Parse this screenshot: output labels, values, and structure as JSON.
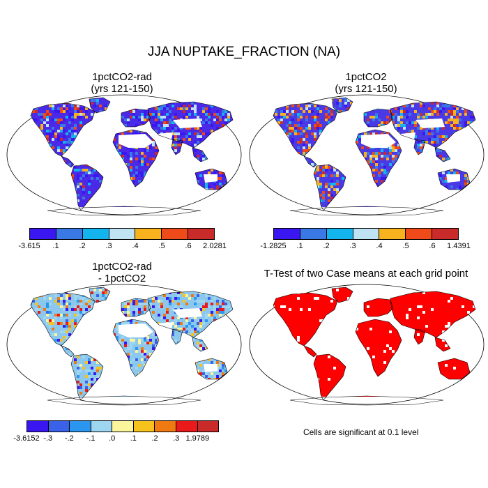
{
  "title": "JJA NUPTAKE_FRACTION (NA)",
  "panels": [
    {
      "title_line1": "1pctCO2-rad",
      "title_line2": "(yrs 121-150)"
    },
    {
      "title_line1": "1pctCO2",
      "title_line2": "(yrs 121-150)"
    },
    {
      "title_line1": "1pctCO2-rad",
      "title_line2": "- 1pctCO2"
    },
    {
      "title_line1": "T-Test of two Case means at each grid point",
      "title_line2": ""
    }
  ],
  "significance_note": "Cells are significant at 0.1 level",
  "chart_data": [
    {
      "type": "heatmap",
      "title": "1pctCO2-rad (yrs 121-150)",
      "projection": "robinson world map",
      "colorbar": {
        "labels": [
          "-3.615",
          ".1",
          ".2",
          ".3",
          ".4",
          ".5",
          ".6",
          "2.0281"
        ],
        "min": -3.615,
        "max": 2.0281,
        "levels": [
          0.1,
          0.2,
          0.3,
          0.4,
          0.5,
          0.6
        ],
        "colors": [
          "#3a16f0",
          "#3a78e6",
          "#14b4ee",
          "#bfe3f2",
          "#f7b21e",
          "#ef4a1a",
          "#c92a2a"
        ]
      }
    },
    {
      "type": "heatmap",
      "title": "1pctCO2 (yrs 121-150)",
      "projection": "robinson world map",
      "colorbar": {
        "labels": [
          "-1.2825",
          ".1",
          ".2",
          ".3",
          ".4",
          ".5",
          ".6",
          "1.4391"
        ],
        "min": -1.2825,
        "max": 1.4391,
        "levels": [
          0.1,
          0.2,
          0.3,
          0.4,
          0.5,
          0.6
        ],
        "colors": [
          "#3a16f0",
          "#3a78e6",
          "#14b4ee",
          "#bfe3f2",
          "#f7b21e",
          "#ef4a1a",
          "#c92a2a"
        ]
      }
    },
    {
      "type": "heatmap",
      "title": "1pctCO2-rad - 1pctCO2",
      "projection": "robinson world map",
      "colorbar": {
        "labels": [
          "-3.6152",
          "-.3",
          "-.2",
          "-.1",
          ".0",
          ".1",
          ".2",
          ".3",
          "1.9789"
        ],
        "min": -3.6152,
        "max": 1.9789,
        "levels": [
          -0.3,
          -0.2,
          -0.1,
          0.0,
          0.1,
          0.2,
          0.3
        ],
        "colors": [
          "#3a16f0",
          "#3a62e8",
          "#2a96ee",
          "#9ed6f2",
          "#fbf59c",
          "#f7c21e",
          "#f07a12",
          "#ea1a1a",
          "#c92a2a"
        ]
      }
    },
    {
      "type": "heatmap",
      "title": "T-Test of two Case means at each grid point",
      "projection": "robinson world map",
      "significant_color": "#ff0000",
      "note": "Cells are significant at 0.1 level"
    }
  ]
}
